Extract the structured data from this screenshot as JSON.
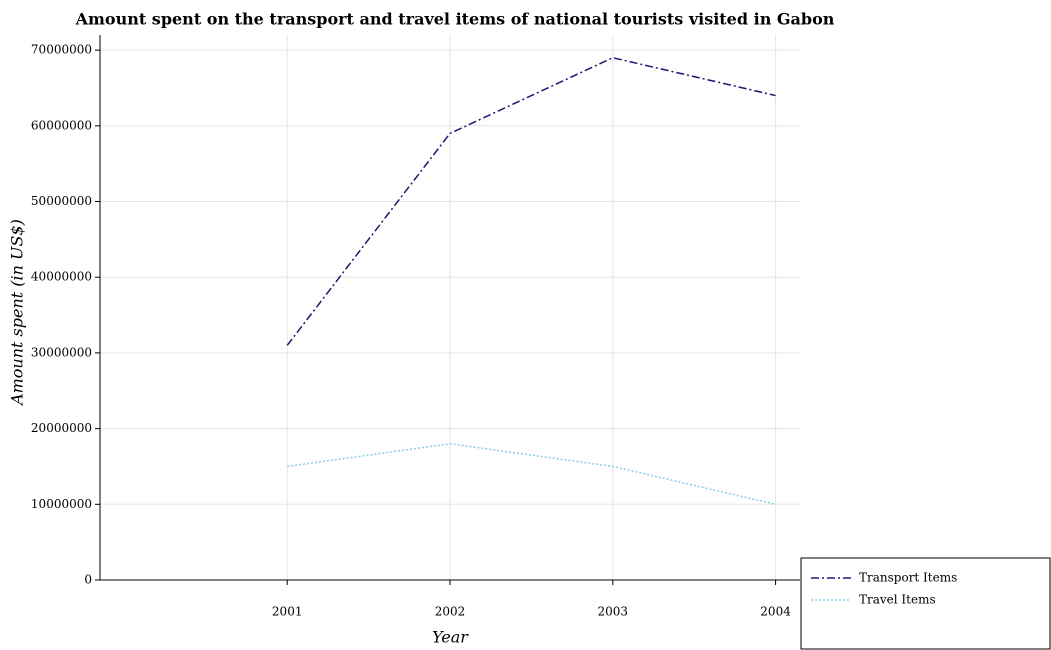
{
  "chart_data": {
    "type": "line",
    "title": "Amount spent on the transport and travel items of national tourists visited in Gabon",
    "x_label": "Year",
    "y_label": "Amount spent (in US$)",
    "x": [
      2001,
      2002,
      2003,
      2004
    ],
    "xlim": [
      1999.85,
      2004.15
    ],
    "xticks": [
      2001,
      2002,
      2003,
      2004
    ],
    "ylim": [
      0,
      72000000
    ],
    "yticks": [
      0,
      10000000,
      20000000,
      30000000,
      40000000,
      50000000,
      60000000,
      70000000
    ],
    "grid": true,
    "legend": "lower right",
    "series": [
      {
        "name": "Transport Items",
        "color": "#191970",
        "dash": "dash-dot",
        "values": [
          31000000,
          59000000,
          69000000,
          64000000
        ]
      },
      {
        "name": "Travel Items",
        "color": "#87ceeb",
        "dash": "dotted",
        "values": [
          15000000,
          18000000,
          15000000,
          10000000
        ]
      }
    ]
  }
}
